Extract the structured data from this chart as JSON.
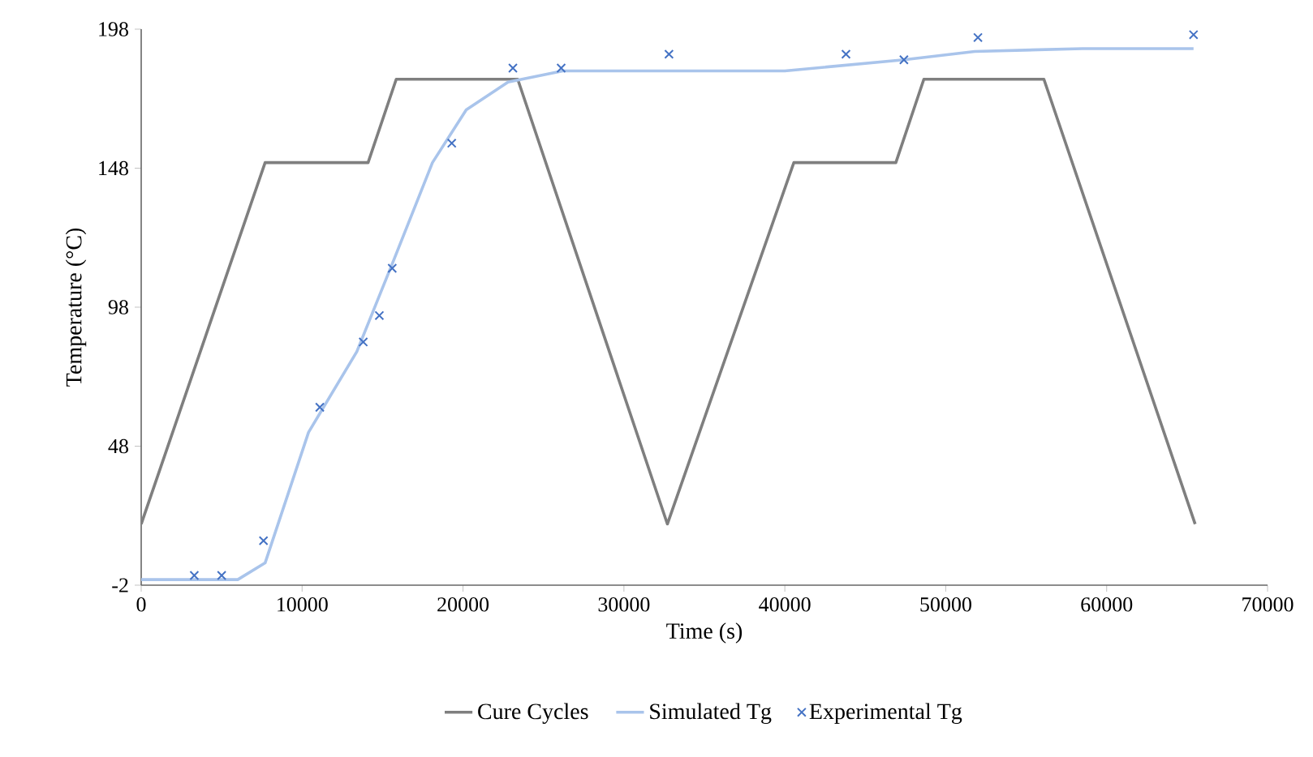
{
  "chart_data": {
    "type": "line",
    "xlabel": "Time (s)",
    "ylabel": "Temperature (°C)",
    "xlim": [
      0,
      70000
    ],
    "ylim": [
      -2,
      198
    ],
    "xticks": [
      0,
      10000,
      20000,
      30000,
      40000,
      50000,
      60000,
      70000
    ],
    "yticks": [
      -2,
      48,
      98,
      148,
      198
    ],
    "grid": false,
    "legend": "bottom",
    "series": [
      {
        "name": "Cure Cycles",
        "color": "#7f7f7f",
        "marker": "none",
        "x": [
          0,
          7700,
          14100,
          15850,
          23400,
          32700,
          40560,
          46900,
          48640,
          56100,
          65500
        ],
        "values": [
          20,
          150,
          150,
          180,
          180,
          20,
          150,
          150,
          180,
          180,
          20
        ]
      },
      {
        "name": "Simulated Tg",
        "color": "#a9c4eb",
        "marker": "none",
        "x": [
          0,
          6000,
          7700,
          10400,
          13400,
          15700,
          18100,
          20200,
          22800,
          26200,
          33000,
          40000,
          47400,
          51800,
          58500,
          65400
        ],
        "values": [
          0,
          0,
          6,
          53,
          82,
          115,
          150,
          169,
          179,
          183,
          183,
          183,
          187,
          190,
          191,
          191
        ]
      },
      {
        "name": "Experimental Tg",
        "type": "scatter",
        "color": "#4472c4",
        "marker": "cross",
        "x": [
          3300,
          5000,
          7600,
          11100,
          13800,
          14800,
          15600,
          19300,
          23100,
          26100,
          32800,
          43800,
          47400,
          52000,
          65400
        ],
        "values": [
          1.5,
          1.5,
          14,
          62,
          85.5,
          95,
          112,
          157,
          184,
          184,
          189,
          189,
          187,
          195,
          196
        ]
      }
    ]
  }
}
